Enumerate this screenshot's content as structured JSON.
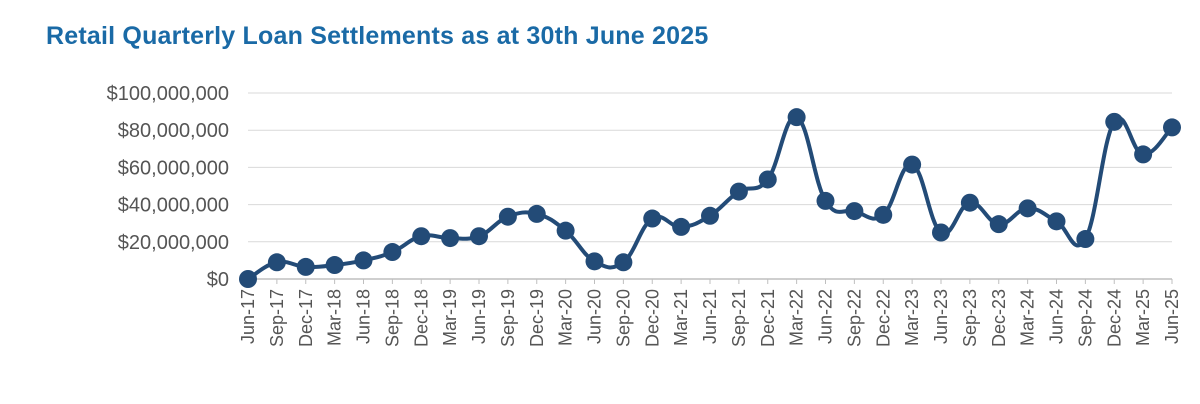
{
  "chart_data": {
    "type": "line",
    "title": "Retail Quarterly Loan Settlements as at 30th June 2025",
    "xlabel": "",
    "ylabel": "",
    "ylim": [
      0,
      100000000
    ],
    "yticks": [
      "$0",
      "$20,000,000",
      "$40,000,000",
      "$60,000,000",
      "$80,000,000",
      "$100,000,000"
    ],
    "categories": [
      "Jun-17",
      "Sep-17",
      "Dec-17",
      "Mar-18",
      "Jun-18",
      "Sep-18",
      "Dec-18",
      "Mar-19",
      "Jun-19",
      "Sep-19",
      "Dec-19",
      "Mar-20",
      "Jun-20",
      "Sep-20",
      "Dec-20",
      "Mar-21",
      "Jun-21",
      "Sep-21",
      "Dec-21",
      "Mar-22",
      "Jun-22",
      "Sep-22",
      "Dec-22",
      "Mar-23",
      "Jun-23",
      "Sep-23",
      "Dec-23",
      "Mar-24",
      "Jun-24",
      "Sep-24",
      "Dec-24",
      "Mar-25",
      "Jun-25"
    ],
    "series": [
      {
        "name": "",
        "values": [
          0,
          9000000,
          6500000,
          7500000,
          10000000,
          14500000,
          23000000,
          22000000,
          23000000,
          33500000,
          35000000,
          26000000,
          9500000,
          9000000,
          32500000,
          28000000,
          34000000,
          47000000,
          53500000,
          87000000,
          42000000,
          36500000,
          34500000,
          61500000,
          25000000,
          41000000,
          29500000,
          38000000,
          31000000,
          21500000,
          84500000,
          67000000,
          81500000
        ]
      }
    ],
    "grid": true,
    "legend": "none",
    "colors": {
      "line": "#234b77",
      "title": "#1a6aa6",
      "grid": "#d9d9d9",
      "axis": "#bfbfbf",
      "text": "#555555"
    }
  }
}
